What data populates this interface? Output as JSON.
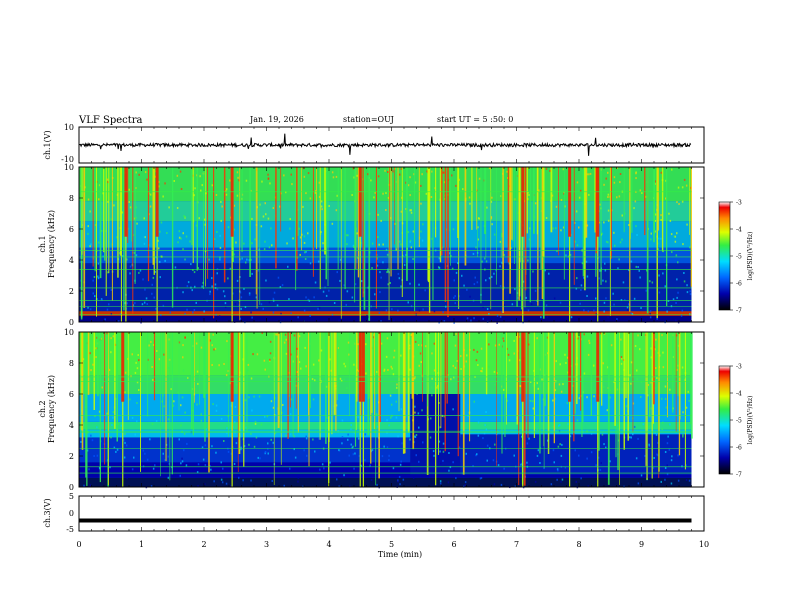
{
  "header": {
    "title": "VLF Spectra",
    "date": "Jan. 19, 2026",
    "station": "station=OUJ",
    "start_ut": "start UT =  5 :50: 0"
  },
  "chart_data": [
    {
      "id": "ch1-waveform",
      "type": "line",
      "ylabel": "ch.1(V)",
      "ylim": [
        -10,
        10
      ],
      "yticks": [
        "10",
        "-10"
      ],
      "xlim": [
        0,
        10
      ],
      "baseline": 0,
      "data_end": 9.8
    },
    {
      "id": "ch1-spectrogram",
      "type": "heatmap",
      "ylabel": "ch.1\nFrequency (kHz)",
      "ylim": [
        0,
        10
      ],
      "yticks": [
        "0",
        "2",
        "4",
        "6",
        "8",
        "10"
      ],
      "xlim": [
        0,
        10
      ],
      "data_end": 9.8,
      "colorbar": {
        "label": "log(PSD)(V²/Hz)",
        "range": [
          -7,
          -3
        ],
        "ticks": [
          "-3",
          "-4",
          "-5",
          "-6",
          "-7"
        ]
      },
      "colors": [
        "#0000aa",
        "#0055ff",
        "#00ccff",
        "#33ee55",
        "#ccff00",
        "#ffcc00",
        "#ff3300",
        "#aa0000"
      ]
    },
    {
      "id": "ch2-spectrogram",
      "type": "heatmap",
      "ylabel": "ch.2\nFrequency (kHz)",
      "ylim": [
        0,
        10
      ],
      "yticks": [
        "0",
        "2",
        "4",
        "6",
        "8",
        "10"
      ],
      "xlim": [
        0,
        10
      ],
      "data_end": 9.8,
      "colorbar": {
        "label": "log(PSD)(V²/Hz)",
        "range": [
          -7,
          -3
        ],
        "ticks": [
          "-3",
          "-4",
          "-5",
          "-6",
          "-7"
        ]
      }
    },
    {
      "id": "ch3-waveform",
      "type": "line",
      "ylabel": "ch.3(V)",
      "ylim": [
        -5,
        5
      ],
      "yticks": [
        "5",
        "0",
        "-5"
      ],
      "xlim": [
        0,
        10
      ],
      "baseline": -2,
      "data_end": 9.8
    }
  ],
  "xaxis": {
    "label": "Time (min)",
    "ticks": [
      "0",
      "1",
      "2",
      "3",
      "4",
      "5",
      "6",
      "7",
      "8",
      "9",
      "10"
    ]
  }
}
